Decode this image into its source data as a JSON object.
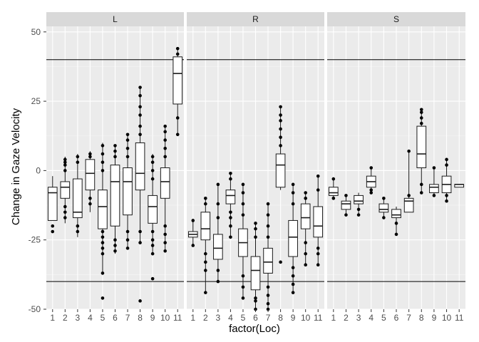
{
  "chart_data": {
    "type": "boxplot",
    "xlabel": "factor(Loc)",
    "ylabel": "Change in Gaze Velocity",
    "ylim": [
      -50,
      52
    ],
    "yticks": [
      -50,
      -25,
      0,
      25,
      50
    ],
    "categories": [
      "1",
      "2",
      "3",
      "4",
      "5",
      "6",
      "7",
      "8",
      "9",
      "10",
      "11"
    ],
    "reference_lines": [
      40,
      -40
    ],
    "grid": true,
    "colors": {
      "panel_bg": "#ebebeb",
      "grid_major": "#ffffff",
      "grid_minor": "#f5f5f5",
      "strip_bg": "#d9d9d9",
      "box_fill": "#ffffff",
      "stroke": "#1a1a1a",
      "point": "#000000"
    },
    "facets": [
      {
        "name": "L",
        "boxes": [
          {
            "cat": "1",
            "q1": -18,
            "median": -8,
            "q3": -6,
            "low": -18,
            "high": -2,
            "outliers": [
              -20,
              -22
            ]
          },
          {
            "cat": "2",
            "q1": -10,
            "median": -6,
            "q3": -4,
            "low": -19,
            "high": 5,
            "outliers": [
              -17,
              -15,
              -13,
              0,
              2,
              3,
              4
            ]
          },
          {
            "cat": "3",
            "q1": -17,
            "median": -15,
            "q3": -3,
            "low": -24,
            "high": 6,
            "outliers": [
              -22,
              -20,
              3,
              5
            ]
          },
          {
            "cat": "4",
            "q1": -7,
            "median": -1,
            "q3": 4,
            "low": -15,
            "high": 7,
            "outliers": [
              -12,
              -10,
              5,
              6
            ]
          },
          {
            "cat": "5",
            "q1": -21,
            "median": -13,
            "q3": -7,
            "low": -37,
            "high": 10,
            "outliers": [
              -46,
              -37,
              -30,
              -28,
              -26,
              -24,
              -22,
              0,
              3,
              6,
              9
            ]
          },
          {
            "cat": "6",
            "q1": -20,
            "median": -4,
            "q3": 2,
            "low": -30,
            "high": 9,
            "outliers": [
              -29,
              -27,
              -25,
              5,
              7,
              9
            ]
          },
          {
            "cat": "7",
            "q1": -16,
            "median": -4,
            "q3": 1,
            "low": -28,
            "high": 13,
            "outliers": [
              -28,
              -25,
              -22,
              5,
              8,
              11,
              13
            ]
          },
          {
            "cat": "8",
            "q1": -7,
            "median": -1,
            "q3": 10,
            "low": -26,
            "high": 30,
            "outliers": [
              -47,
              -26,
              -22,
              13,
              16,
              20,
              23,
              27,
              30
            ]
          },
          {
            "cat": "9",
            "q1": -19,
            "median": -13,
            "q3": -9,
            "low": -30,
            "high": 6,
            "outliers": [
              -39,
              -30,
              -27,
              -25,
              -22,
              -3,
              0,
              3,
              5
            ]
          },
          {
            "cat": "10",
            "q1": -10,
            "median": -4,
            "q3": 1,
            "low": -29,
            "high": 16,
            "outliers": [
              -29,
              -26,
              -23,
              -20,
              5,
              8,
              11,
              14,
              16
            ]
          },
          {
            "cat": "11",
            "q1": 24,
            "median": 35,
            "q3": 41,
            "low": 13,
            "high": 44,
            "outliers": [
              13,
              19,
              42,
              44
            ]
          }
        ]
      },
      {
        "name": "R",
        "boxes": [
          {
            "cat": "1",
            "q1": -24,
            "median": -23,
            "q3": -22,
            "low": -27,
            "high": -18,
            "outliers": [
              -27,
              -18
            ]
          },
          {
            "cat": "2",
            "q1": -25,
            "median": -21,
            "q3": -15,
            "low": -44,
            "high": -10,
            "outliers": [
              -44,
              -36,
              -33,
              -30,
              -12,
              -10
            ]
          },
          {
            "cat": "3",
            "q1": -32,
            "median": -28,
            "q3": -23,
            "low": -40,
            "high": -5,
            "outliers": [
              -40,
              -36,
              -17,
              -12,
              -5
            ]
          },
          {
            "cat": "4",
            "q1": -12,
            "median": -9,
            "q3": -7,
            "low": -24,
            "high": -1,
            "outliers": [
              -24,
              -20,
              -17,
              -15,
              -3,
              -1
            ]
          },
          {
            "cat": "5",
            "q1": -31,
            "median": -26,
            "q3": -21,
            "low": -46,
            "high": -5,
            "outliers": [
              -46,
              -42,
              -38,
              -16,
              -12,
              -8,
              -5
            ]
          },
          {
            "cat": "6",
            "q1": -43,
            "median": -36,
            "q3": -31,
            "low": -50,
            "high": -19,
            "outliers": [
              -50,
              -47,
              -46,
              -24,
              -21,
              -19
            ]
          },
          {
            "cat": "7",
            "q1": -37,
            "median": -33,
            "q3": -28,
            "low": -50,
            "high": -12,
            "outliers": [
              -50,
              -48,
              -45,
              -42,
              -24,
              -20,
              -16,
              -12
            ]
          },
          {
            "cat": "8",
            "q1": -6,
            "median": 2,
            "q3": 6,
            "low": -7,
            "high": 23,
            "outliers": [
              -33,
              9,
              12,
              15,
              18,
              20,
              23
            ]
          },
          {
            "cat": "9",
            "q1": -31,
            "median": -24,
            "q3": -18,
            "low": -44,
            "high": -5,
            "outliers": [
              -44,
              -41,
              -38,
              -35,
              -12,
              -8,
              -5
            ]
          },
          {
            "cat": "10",
            "q1": -21,
            "median": -17,
            "q3": -12,
            "low": -34,
            "high": -8,
            "outliers": [
              -34,
              -30,
              -26,
              -10,
              -8
            ]
          },
          {
            "cat": "11",
            "q1": -24,
            "median": -20,
            "q3": -13,
            "low": -34,
            "high": -2,
            "outliers": [
              -34,
              -30,
              -28,
              -7,
              -2
            ]
          }
        ]
      },
      {
        "name": "S",
        "boxes": [
          {
            "cat": "1",
            "q1": -9,
            "median": -8,
            "q3": -6,
            "low": -10,
            "high": -3,
            "outliers": [
              -10,
              -3
            ]
          },
          {
            "cat": "2",
            "q1": -14,
            "median": -12,
            "q3": -11,
            "low": -16,
            "high": -9,
            "outliers": [
              -16,
              -9
            ]
          },
          {
            "cat": "3",
            "q1": -12,
            "median": -11,
            "q3": -9,
            "low": -16,
            "high": -8,
            "outliers": [
              -16,
              -14
            ]
          },
          {
            "cat": "4",
            "q1": -6,
            "median": -4,
            "q3": -2,
            "low": -8,
            "high": 1,
            "outliers": [
              -8,
              -7,
              1
            ]
          },
          {
            "cat": "5",
            "q1": -15,
            "median": -14,
            "q3": -12,
            "low": -17,
            "high": -10,
            "outliers": [
              -17,
              -10
            ]
          },
          {
            "cat": "6",
            "q1": -17,
            "median": -16,
            "q3": -14,
            "low": -23,
            "high": -13,
            "outliers": [
              -23,
              -19
            ]
          },
          {
            "cat": "7",
            "q1": -15,
            "median": -11,
            "q3": -10,
            "low": -15,
            "high": 7,
            "outliers": [
              -9,
              7
            ]
          },
          {
            "cat": "8",
            "q1": 1,
            "median": 6,
            "q3": 16,
            "low": -8,
            "high": 22,
            "outliers": [
              -8,
              -5,
              17,
              19,
              21,
              22
            ]
          },
          {
            "cat": "9",
            "q1": -8,
            "median": -6,
            "q3": -5,
            "low": -9,
            "high": 1,
            "outliers": [
              -9,
              1
            ]
          },
          {
            "cat": "10",
            "q1": -8,
            "median": -5,
            "q3": -2,
            "low": -11,
            "high": 4,
            "outliers": [
              -11,
              -9,
              2,
              4
            ]
          },
          {
            "cat": "11",
            "q1": -6,
            "median": -5,
            "q3": -5,
            "low": -6,
            "high": -5,
            "outliers": []
          }
        ]
      }
    ]
  }
}
